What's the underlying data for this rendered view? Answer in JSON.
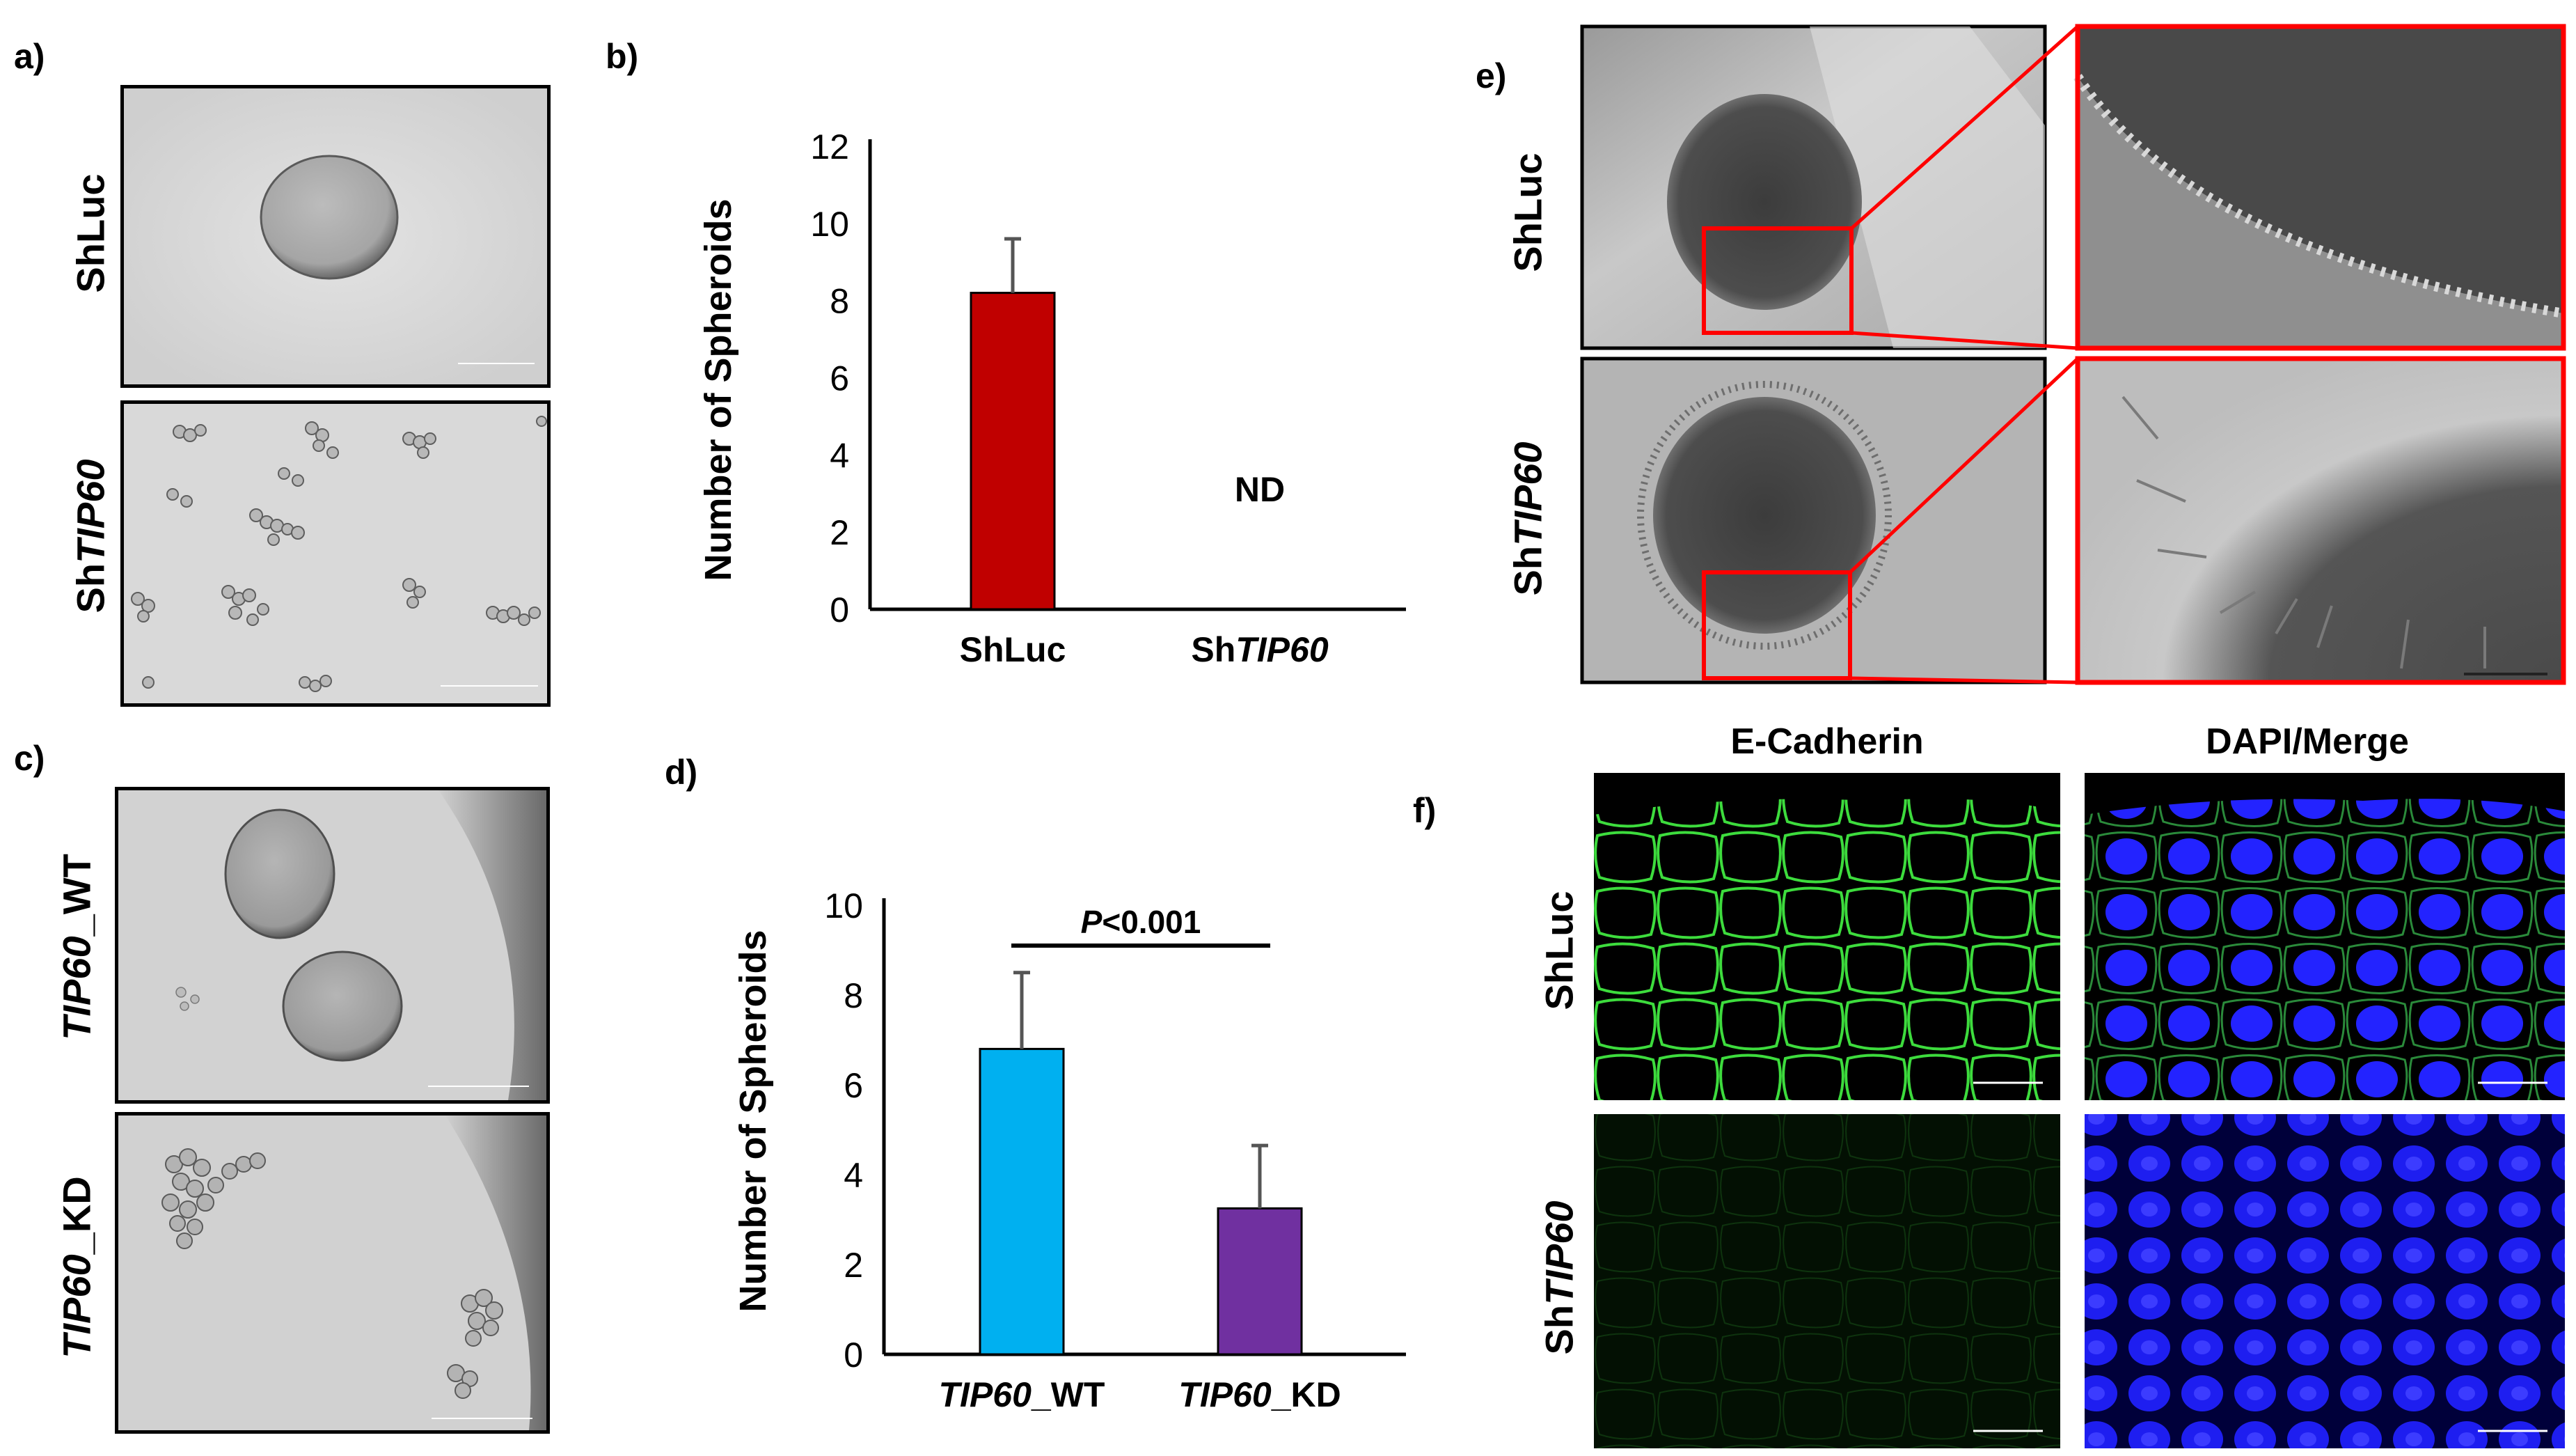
{
  "panel_labels": {
    "a": "a)",
    "b": "b)",
    "c": "c)",
    "d": "d)",
    "e": "e)",
    "f": "f)"
  },
  "panel_a": {
    "row_labels": [
      {
        "prefix": "ShLuc",
        "italic": ""
      },
      {
        "prefix": "Sh",
        "italic": "TIP60"
      }
    ]
  },
  "panel_c": {
    "row_labels": [
      {
        "italic": "TIP60",
        "suffix": "_WT"
      },
      {
        "italic": "TIP60",
        "suffix": "_KD"
      }
    ]
  },
  "panel_e": {
    "row_labels": [
      {
        "prefix": "ShLuc",
        "italic": ""
      },
      {
        "prefix": "Sh",
        "italic": "TIP60"
      }
    ]
  },
  "panel_f": {
    "column_titles": [
      "E-Cadherin",
      "DAPI/Merge"
    ],
    "row_labels": [
      {
        "prefix": "ShLuc",
        "italic": ""
      },
      {
        "prefix": "Sh",
        "italic": "TIP60"
      }
    ]
  },
  "chart_data": [
    {
      "type": "bar",
      "panel": "b",
      "categories": [
        {
          "prefix": "ShLuc",
          "italic": ""
        },
        {
          "prefix": "Sh",
          "italic": "TIP60"
        }
      ],
      "values": [
        8.2,
        0
      ],
      "error_plus": [
        1.4,
        0
      ],
      "bar_colors": [
        "#c00000",
        "#c00000"
      ],
      "ylabel": "Number of Spheroids",
      "ylim": [
        0,
        12
      ],
      "yticks": [
        "0",
        "2",
        "4",
        "6",
        "8",
        "10",
        "12"
      ],
      "annotations": [
        {
          "text": "ND",
          "category_index": 1,
          "y": 2.8
        }
      ]
    },
    {
      "type": "bar",
      "panel": "d",
      "categories": [
        {
          "italic": "TIP60",
          "suffix": "_WT"
        },
        {
          "italic": "TIP60",
          "suffix": "_KD"
        }
      ],
      "values": [
        6.8,
        3.25
      ],
      "error_plus": [
        1.7,
        1.4
      ],
      "bar_colors": [
        "#00b0f0",
        "#7030a0"
      ],
      "ylabel": "Number of Spheroids",
      "ylim": [
        0,
        10
      ],
      "yticks": [
        "0",
        "2",
        "4",
        "6",
        "8",
        "10"
      ],
      "significance": {
        "italic": "P",
        "rest": "<0.001",
        "y": 9.1
      }
    }
  ]
}
